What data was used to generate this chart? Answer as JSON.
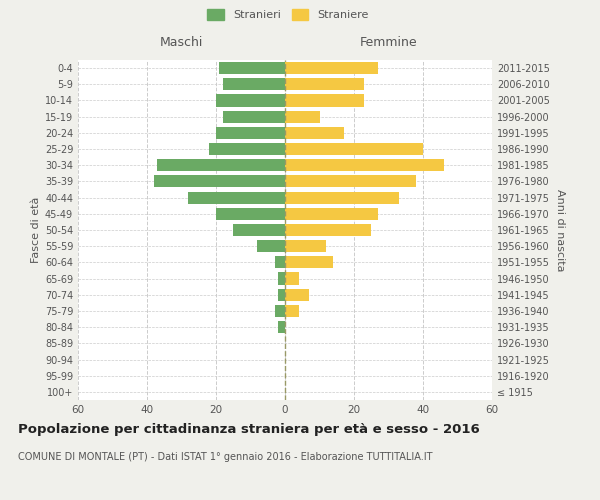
{
  "age_groups": [
    "100+",
    "95-99",
    "90-94",
    "85-89",
    "80-84",
    "75-79",
    "70-74",
    "65-69",
    "60-64",
    "55-59",
    "50-54",
    "45-49",
    "40-44",
    "35-39",
    "30-34",
    "25-29",
    "20-24",
    "15-19",
    "10-14",
    "5-9",
    "0-4"
  ],
  "birth_years": [
    "≤ 1915",
    "1916-1920",
    "1921-1925",
    "1926-1930",
    "1931-1935",
    "1936-1940",
    "1941-1945",
    "1946-1950",
    "1951-1955",
    "1956-1960",
    "1961-1965",
    "1966-1970",
    "1971-1975",
    "1976-1980",
    "1981-1985",
    "1986-1990",
    "1991-1995",
    "1996-2000",
    "2001-2005",
    "2006-2010",
    "2011-2015"
  ],
  "males": [
    0,
    0,
    0,
    0,
    2,
    3,
    2,
    2,
    3,
    8,
    15,
    20,
    28,
    38,
    37,
    22,
    20,
    18,
    20,
    18,
    19
  ],
  "females": [
    0,
    0,
    0,
    0,
    0,
    4,
    7,
    4,
    14,
    12,
    25,
    27,
    33,
    38,
    46,
    40,
    17,
    10,
    23,
    23,
    27
  ],
  "male_color": "#6aaa64",
  "female_color": "#f5c842",
  "background_color": "#f0f0eb",
  "bar_bg_color": "#ffffff",
  "title": "Popolazione per cittadinanza straniera per età e sesso - 2016",
  "subtitle": "COMUNE DI MONTALE (PT) - Dati ISTAT 1° gennaio 2016 - Elaborazione TUTTITALIA.IT",
  "ylabel_left": "Fasce di età",
  "ylabel_right": "Anni di nascita",
  "legend_male": "Stranieri",
  "legend_female": "Straniere",
  "xlabel_left": "Maschi",
  "xlabel_right": "Femmine",
  "xlim": 60,
  "grid_color": "#cccccc"
}
